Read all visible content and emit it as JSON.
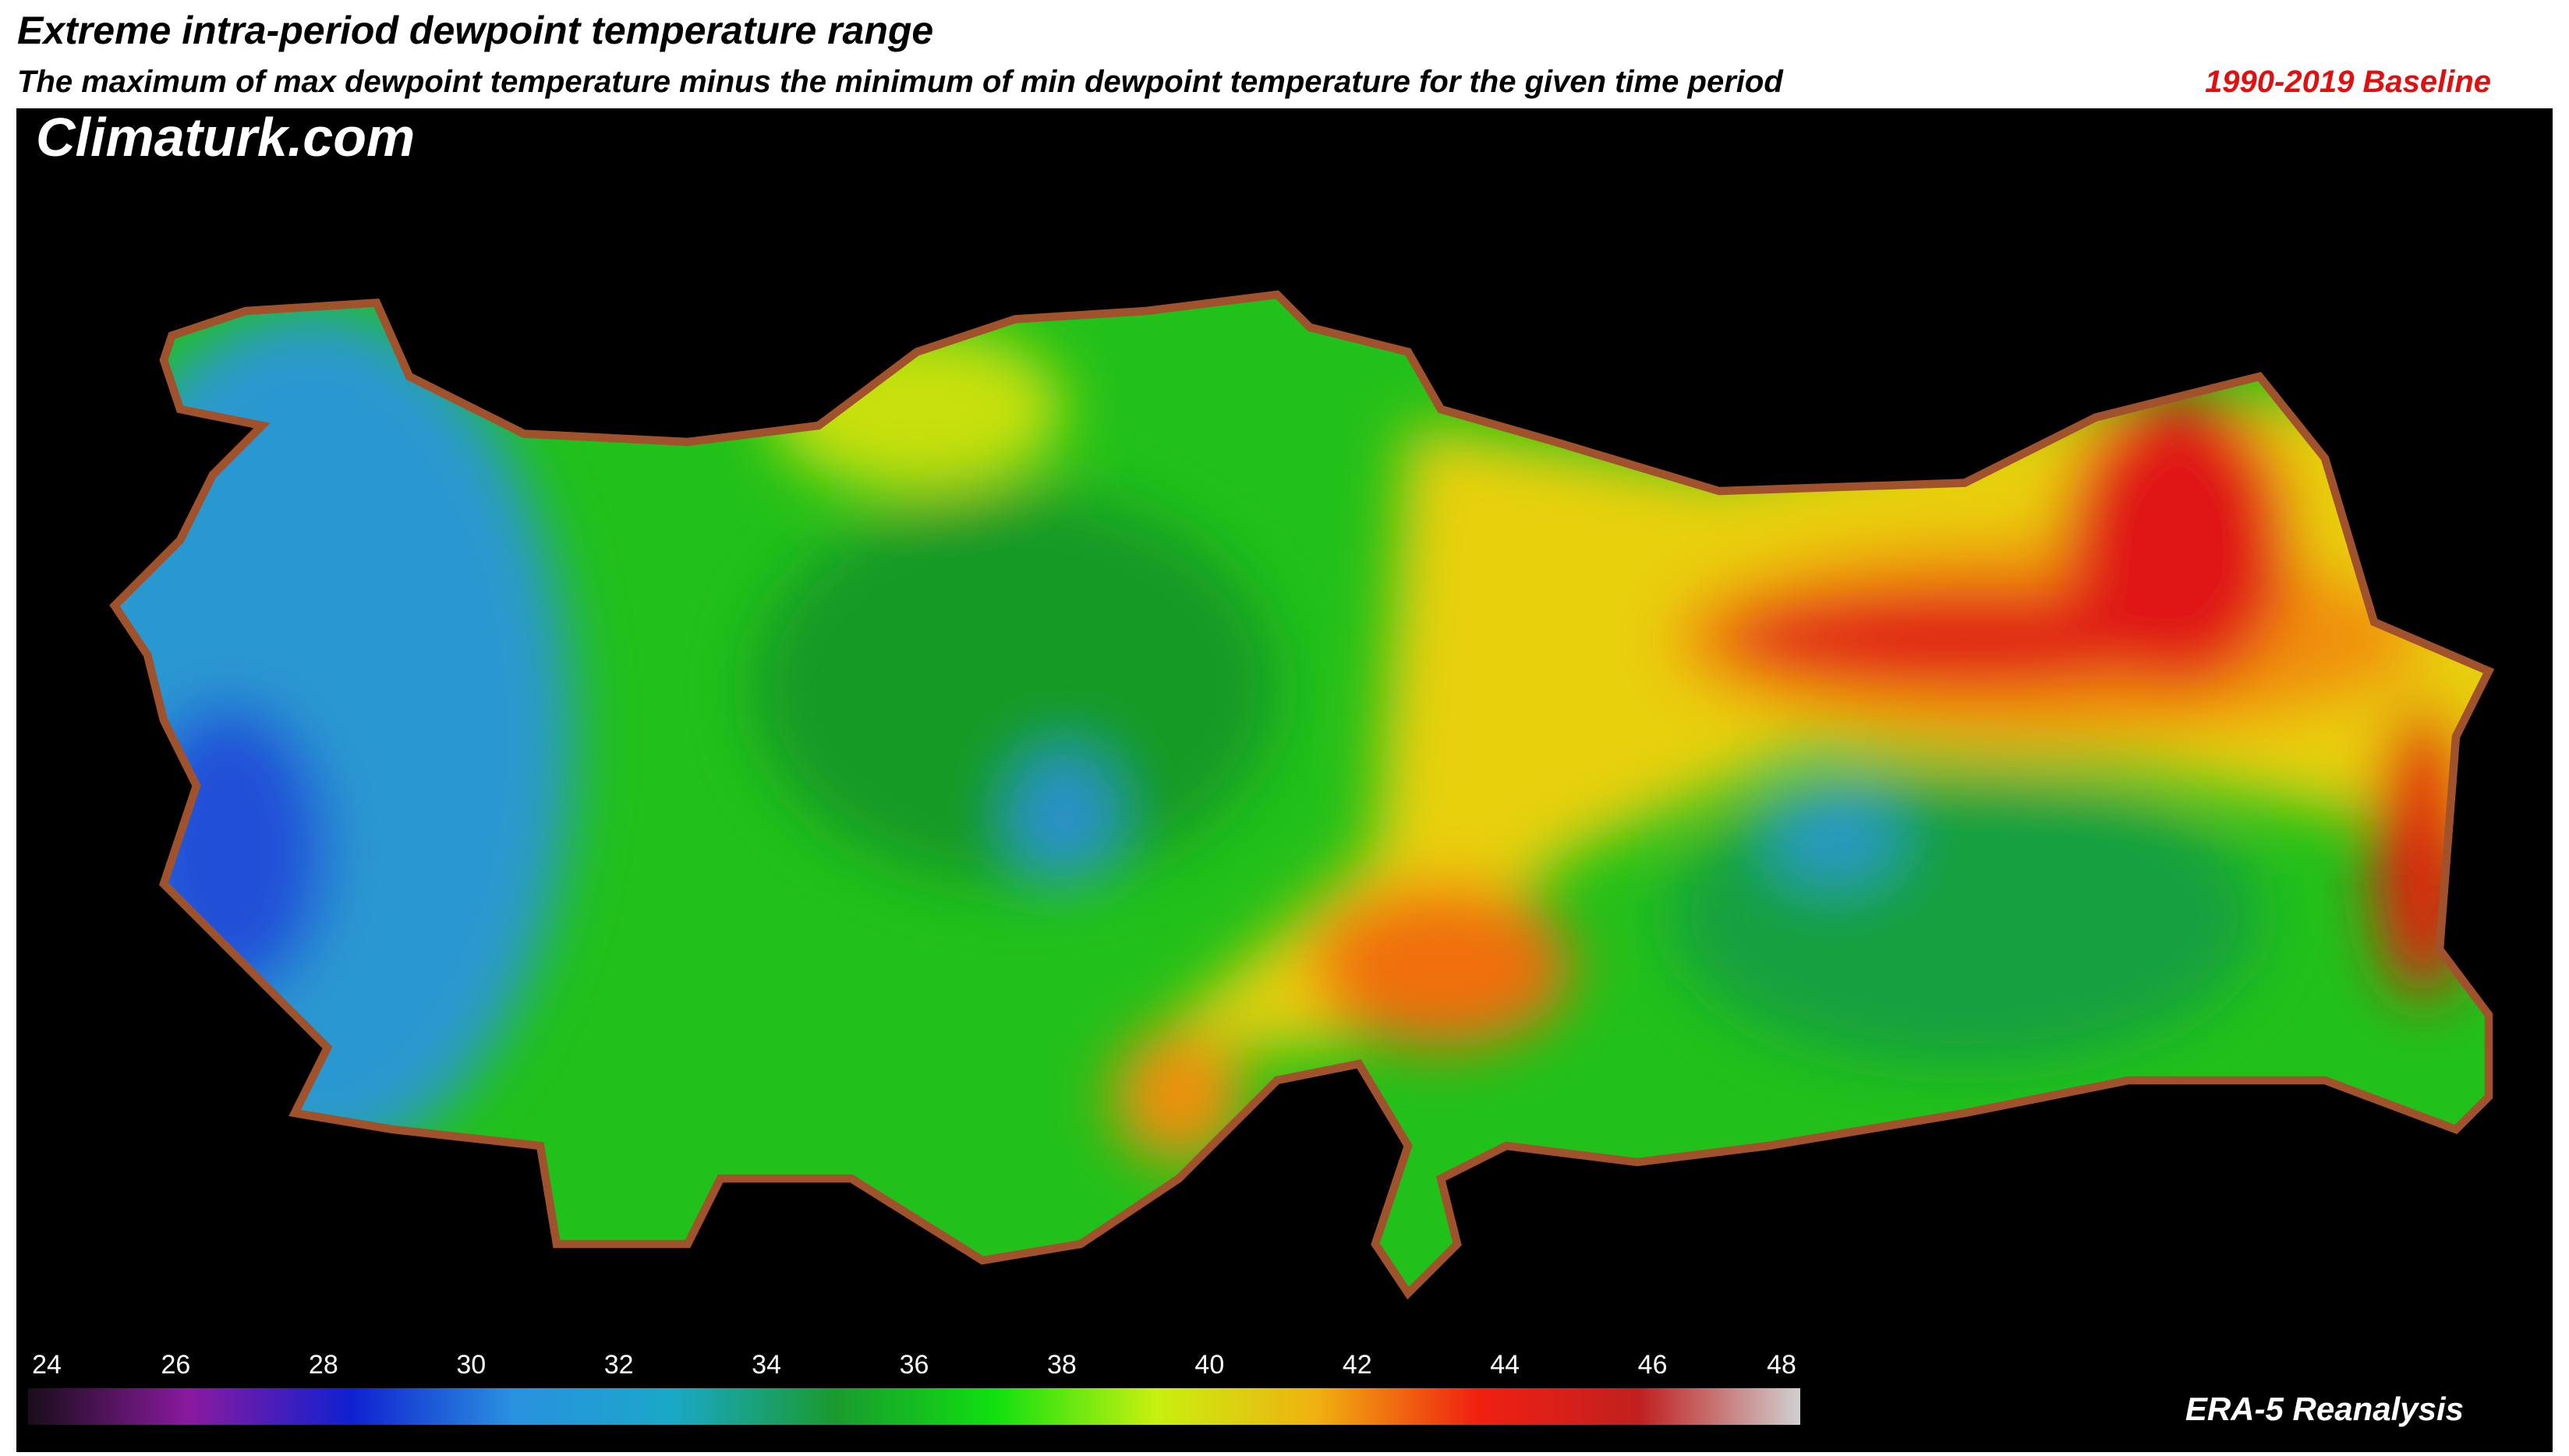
{
  "header": {
    "title": "Extreme intra-period dewpoint temperature range",
    "subtitle": "The maximum of max dewpoint temperature minus the minimum of min dewpoint temperature for the given time period",
    "baseline": "1990-2019 Baseline"
  },
  "map": {
    "watermark": "Climaturk.com",
    "source": "ERA-5 Reanalysis"
  },
  "colorbar": {
    "ticks": [
      24,
      26,
      28,
      30,
      32,
      34,
      36,
      38,
      40,
      42,
      44,
      46,
      48
    ],
    "colors": [
      "#1a0d1a",
      "#8a1aa0",
      "#1020d0",
      "#2a90e0",
      "#1aa8c8",
      "#1a9a30",
      "#10e010",
      "#c8f010",
      "#f0b010",
      "#f02010",
      "#c02020",
      "#d0d0d0"
    ]
  }
}
